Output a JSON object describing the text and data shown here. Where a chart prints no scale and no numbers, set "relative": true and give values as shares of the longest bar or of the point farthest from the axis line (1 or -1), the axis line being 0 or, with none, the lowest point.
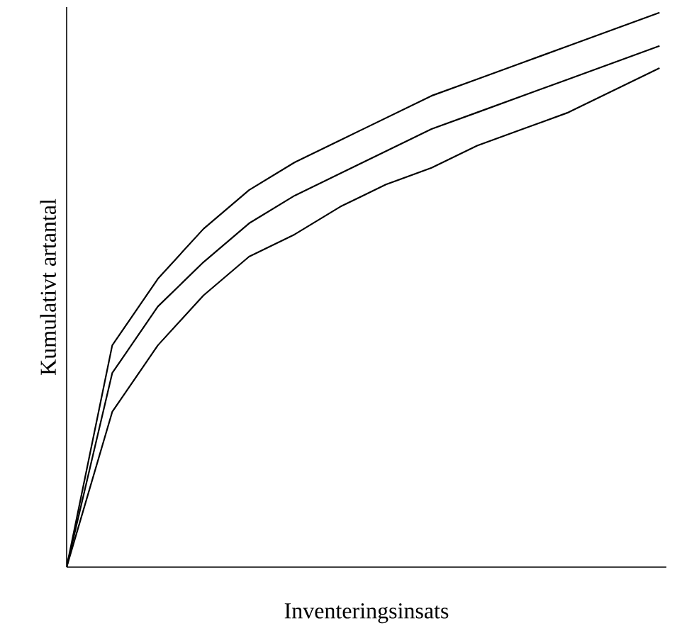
{
  "chart_data": {
    "type": "line",
    "relative": true,
    "xlabel": "Inventeringsinsats",
    "ylabel": "Kumulativt artantal",
    "categories": [
      null,
      null,
      null,
      null,
      null,
      null,
      null,
      null,
      null,
      null,
      null,
      null,
      null,
      null
    ],
    "series": [
      {
        "color": "#000000",
        "values": [
          0,
          0.4,
          0.52,
          0.61,
          0.68,
          0.73,
          0.77,
          0.81,
          0.85,
          0.88,
          0.91,
          0.94,
          0.97,
          1
        ]
      },
      {
        "color": "#000000",
        "values": [
          0,
          0.35,
          0.47,
          0.55,
          0.62,
          0.67,
          0.71,
          0.75,
          0.79,
          0.82,
          0.85,
          0.88,
          0.91,
          0.94
        ]
      },
      {
        "color": "#000000",
        "values": [
          0,
          0.28,
          0.4,
          0.49,
          0.56,
          0.6,
          0.65,
          0.69,
          0.72,
          0.76,
          0.79,
          0.82,
          0.86,
          0.9
        ]
      }
    ],
    "marker": "none",
    "line_style": "solid"
  }
}
